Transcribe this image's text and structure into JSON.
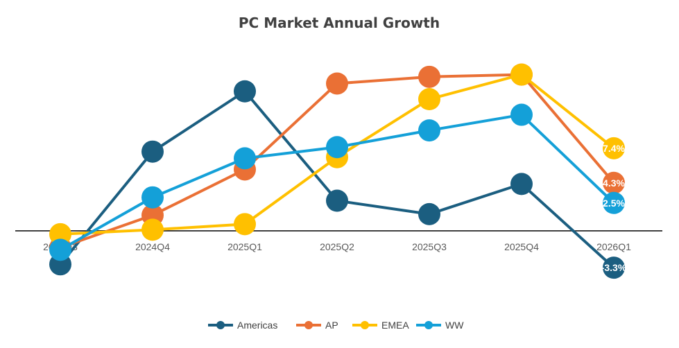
{
  "chart_data": {
    "type": "line",
    "title": "PC Market Annual Growth",
    "categories": [
      "2024Q3",
      "2024Q4",
      "2025Q1",
      "2025Q2",
      "2025Q3",
      "2025Q4",
      "2026Q1"
    ],
    "unit": "%",
    "grid": false,
    "legend_position": "bottom",
    "series": [
      {
        "name": "Americas",
        "color": "#1b5e80",
        "values": [
          -3.0,
          7.1,
          12.5,
          2.7,
          1.5,
          4.2,
          -3.3
        ],
        "last_label": "-3.3%"
      },
      {
        "name": "AP",
        "color": "#ea7035",
        "values": [
          -1.5,
          1.4,
          5.5,
          13.2,
          13.8,
          14.0,
          4.3
        ],
        "last_label": "4.3%"
      },
      {
        "name": "EMEA",
        "color": "#ffc000",
        "values": [
          -0.3,
          0.1,
          0.6,
          6.6,
          11.8,
          14.0,
          7.4
        ],
        "last_label": "7.4%"
      },
      {
        "name": "WW",
        "color": "#14a0d8",
        "values": [
          -1.7,
          3.0,
          6.5,
          7.5,
          9.0,
          10.4,
          2.5
        ],
        "last_label": "2.5%"
      }
    ]
  }
}
